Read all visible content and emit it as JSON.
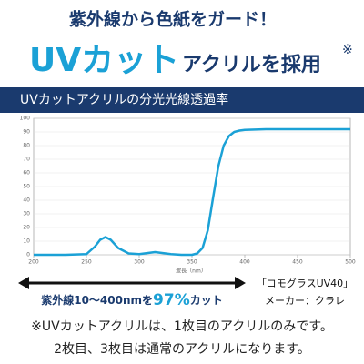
{
  "header": {
    "title": "紫外線から色紙をガード！"
  },
  "headline": {
    "main": "UVカット",
    "sub": "アクリルを採用",
    "mark": "※"
  },
  "chart_data": {
    "type": "line",
    "title": "UVカットアクリルの分光光線透過率",
    "xlabel": "波長（nm）",
    "x": [
      200,
      230,
      250,
      258,
      263,
      268,
      273,
      280,
      290,
      300,
      310,
      315,
      320,
      330,
      340,
      350,
      355,
      360,
      365,
      370,
      375,
      380,
      385,
      390,
      395,
      400,
      420,
      450,
      500
    ],
    "series": [
      {
        "color": "#1ba1d6",
        "values": [
          0,
          0,
          0.5,
          6,
          11,
          13,
          11,
          5,
          1,
          0.5,
          1.5,
          2,
          1.5,
          0.5,
          0,
          0,
          1,
          5,
          18,
          42,
          65,
          80,
          87,
          90,
          91,
          91.5,
          92,
          92,
          92
        ]
      }
    ],
    "xlim": [
      200,
      500
    ],
    "ylim": [
      0,
      100
    ],
    "xticks": [
      200,
      250,
      300,
      350,
      400,
      450,
      500
    ],
    "yticks": [
      0,
      10,
      20,
      30,
      40,
      50,
      60,
      70,
      80,
      90,
      100
    ],
    "grid": true
  },
  "caption": {
    "before": "紫外線10〜400nmを",
    "highlight": "97%",
    "after": "カット"
  },
  "product": {
    "name": "「コモグラスUV40」",
    "maker": "メーカー：クラレ"
  },
  "notes": [
    "※UVカットアクリルは、1枚目のアクリルのみです。",
    "2枚目、3枚目は通常のアクリルになります。"
  ]
}
